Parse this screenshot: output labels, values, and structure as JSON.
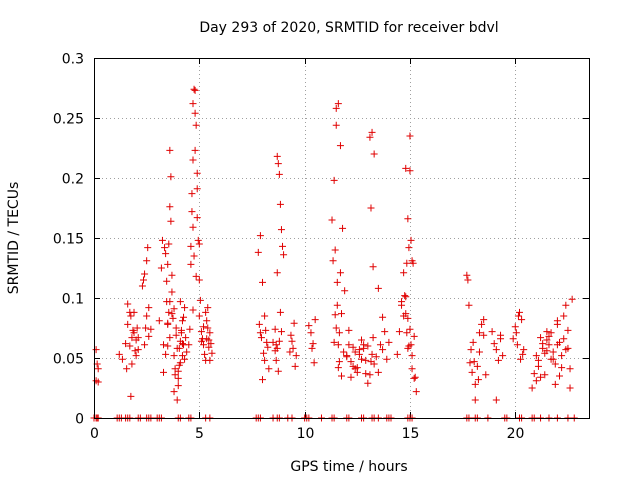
{
  "chart_data": {
    "type": "scatter",
    "title": "Day 293 of 2020, SRMTID for receiver bdvl",
    "xlabel": "GPS time / hours",
    "ylabel": "SRMTID / TECUs",
    "xlim": [
      0,
      23.5
    ],
    "ylim": [
      0,
      0.3
    ],
    "grid": true,
    "marker": "+",
    "color": "#e00000",
    "xticks": [
      0,
      5,
      10,
      15,
      20
    ],
    "xtick_labels": [
      "0",
      "5",
      "10",
      "15",
      "20"
    ],
    "yticks": [
      0,
      0.05,
      0.1,
      0.15,
      0.2,
      0.25,
      0.3
    ],
    "ytick_labels": [
      "0",
      "0.05",
      "0.1",
      "0.15",
      "0.2",
      "0.25",
      "0.3"
    ],
    "series": [
      {
        "name": "SRMTID",
        "x": [
          0.1,
          0.15,
          0.2,
          0.2,
          0.1,
          1.2,
          1.35,
          1.5,
          1.55,
          1.6,
          1.7,
          1.75,
          1.8,
          1.85,
          1.9,
          1.95,
          2.0,
          2.05,
          2.1,
          1.6,
          1.7,
          1.8,
          1.9,
          2.0,
          2.1,
          1.75,
          2.3,
          2.35,
          2.4,
          2.45,
          2.5,
          2.55,
          2.6,
          2.7,
          2.4,
          2.5,
          2.6,
          3.1,
          3.2,
          3.25,
          3.3,
          3.35,
          3.4,
          3.45,
          3.5,
          3.5,
          3.55,
          3.6,
          3.6,
          3.65,
          3.7,
          3.4,
          3.5,
          3.6,
          3.7,
          3.3,
          3.45,
          3.55,
          3.6,
          3.65,
          3.5,
          3.75,
          3.8,
          3.85,
          3.9,
          3.95,
          4.0,
          4.05,
          4.1,
          4.15,
          4.2,
          4.25,
          4.3,
          4.35,
          4.4,
          3.8,
          3.9,
          4.0,
          4.1,
          4.2,
          4.3,
          3.85,
          3.95,
          4.05,
          4.15,
          4.25,
          3.7,
          3.8,
          4.0,
          4.1,
          4.2,
          4.5,
          4.55,
          4.6,
          4.65,
          4.7,
          4.75,
          4.8,
          4.85,
          4.9,
          4.95,
          5.0,
          5.05,
          5.1,
          5.15,
          5.2,
          4.6,
          4.7,
          4.8,
          4.9,
          5.0,
          5.1,
          5.2,
          4.65,
          4.7,
          4.8,
          4.9,
          5.0,
          4.7,
          4.75,
          4.85,
          5.25,
          5.3,
          5.35,
          5.4,
          5.45,
          5.5,
          5.55,
          5.6,
          5.3,
          5.4,
          5.5,
          5.35,
          5.45,
          7.8,
          7.9,
          8.0,
          8.1,
          8.2,
          8.3,
          7.85,
          7.95,
          8.05,
          8.15,
          8.25,
          8.0,
          8.1,
          7.9,
          8.5,
          8.6,
          8.65,
          8.7,
          8.75,
          8.8,
          8.85,
          8.9,
          8.95,
          9.0,
          8.6,
          8.7,
          8.8,
          8.9,
          8.65,
          8.75,
          8.85,
          8.7,
          9.3,
          9.4,
          9.5,
          9.6,
          9.35,
          9.45,
          9.55,
          10.3,
          10.4,
          10.5,
          10.35,
          10.45,
          10.2,
          11.3,
          11.4,
          11.5,
          11.6,
          11.7,
          11.8,
          11.9,
          12.0,
          11.35,
          11.45,
          11.55,
          11.65,
          11.75,
          11.85,
          11.4,
          11.5,
          11.6,
          11.7,
          11.5,
          11.55,
          11.6,
          11.45,
          11.65,
          11.75,
          12.0,
          12.1,
          12.2,
          12.3,
          12.4,
          12.5,
          12.6,
          12.7,
          12.8,
          12.9,
          13.0,
          12.1,
          12.3,
          12.5,
          12.7,
          12.9,
          12.2,
          12.4,
          12.6,
          12.8,
          13.0,
          13.1,
          13.15,
          13.2,
          13.25,
          13.3,
          13.4,
          13.5,
          13.6,
          13.7,
          13.8,
          13.9,
          14.0,
          13.1,
          13.2,
          13.3,
          13.15,
          13.25,
          13.5,
          13.7,
          14.4,
          14.5,
          14.6,
          14.7,
          14.8,
          14.85,
          14.9,
          14.95,
          15.0,
          15.05,
          15.1,
          15.15,
          15.2,
          15.25,
          15.3,
          14.6,
          14.7,
          14.8,
          14.9,
          15.0,
          15.1,
          14.75,
          14.85,
          14.95,
          15.05,
          14.9,
          15.0,
          15.1,
          15.2,
          14.8,
          17.7,
          17.75,
          17.8,
          17.85,
          17.9,
          17.95,
          18.0,
          18.1,
          18.2,
          18.3,
          18.4,
          18.5,
          18.6,
          18.1,
          18.3,
          18.5,
          18.05,
          18.25,
          18.9,
          19.0,
          19.1,
          19.2,
          19.3,
          19.4,
          19.1,
          19.3,
          19.9,
          20.0,
          20.1,
          20.2,
          20.3,
          20.4,
          20.05,
          20.25,
          20.15,
          20.35,
          20.8,
          20.9,
          21.0,
          21.1,
          21.2,
          21.3,
          21.4,
          21.5,
          21.6,
          21.7,
          21.8,
          21.9,
          22.0,
          22.1,
          22.2,
          22.3,
          22.4,
          22.5,
          22.6,
          22.7,
          21.1,
          21.3,
          21.5,
          21.7,
          21.9,
          22.1,
          22.3,
          22.5,
          21.2,
          21.4,
          21.6,
          21.8,
          22.0,
          22.2,
          22.4,
          21.0,
          21.5,
          22.0,
          22.6,
          0.0,
          0.1,
          0.15,
          0.2,
          1.1,
          1.2,
          1.3,
          1.5,
          1.6,
          1.7,
          2.1,
          2.2,
          2.5,
          2.6,
          2.7,
          3.0,
          3.1,
          3.2,
          4.0,
          4.1,
          4.5,
          4.6,
          5.3,
          5.5,
          7.7,
          7.8,
          7.9,
          8.5,
          8.7,
          8.8,
          9.2,
          9.4,
          10.0,
          10.1,
          10.2,
          10.8,
          11.3,
          11.4,
          12.0,
          12.1,
          12.7,
          12.8,
          13.2,
          13.3,
          13.5,
          13.9,
          14.0,
          14.1,
          14.9,
          15.0,
          15.1,
          17.7,
          17.8,
          18.1,
          18.2,
          18.7,
          19.5,
          19.6,
          20.2,
          20.3,
          20.8,
          20.9,
          21.2,
          21.6,
          22.0,
          22.5,
          22.8
        ],
        "y": [
          0.057,
          0.045,
          0.041,
          0.03,
          0.031,
          0.053,
          0.049,
          0.062,
          0.041,
          0.078,
          0.06,
          0.085,
          0.045,
          0.073,
          0.088,
          0.056,
          0.065,
          0.075,
          0.067,
          0.095,
          0.088,
          0.067,
          0.071,
          0.052,
          0.057,
          0.018,
          0.11,
          0.115,
          0.12,
          0.075,
          0.131,
          0.142,
          0.092,
          0.074,
          0.061,
          0.085,
          0.068,
          0.081,
          0.125,
          0.148,
          0.061,
          0.142,
          0.137,
          0.097,
          0.128,
          0.06,
          0.088,
          0.223,
          0.176,
          0.164,
          0.087,
          0.053,
          0.078,
          0.067,
          0.119,
          0.038,
          0.114,
          0.145,
          0.097,
          0.201,
          0.079,
          0.083,
          0.052,
          0.041,
          0.069,
          0.015,
          0.033,
          0.058,
          0.046,
          0.071,
          0.062,
          0.084,
          0.049,
          0.067,
          0.055,
          0.091,
          0.075,
          0.027,
          0.064,
          0.081,
          0.092,
          0.036,
          0.058,
          0.044,
          0.073,
          0.061,
          0.105,
          0.022,
          0.039,
          0.097,
          0.052,
          0.061,
          0.074,
          0.143,
          0.187,
          0.215,
          0.274,
          0.273,
          0.244,
          0.167,
          0.148,
          0.085,
          0.098,
          0.072,
          0.066,
          0.061,
          0.128,
          0.09,
          0.254,
          0.204,
          0.115,
          0.064,
          0.076,
          0.172,
          0.262,
          0.223,
          0.191,
          0.145,
          0.159,
          0.135,
          0.118,
          0.053,
          0.048,
          0.066,
          0.075,
          0.059,
          0.071,
          0.062,
          0.054,
          0.088,
          0.092,
          0.048,
          0.081,
          0.065,
          0.138,
          0.152,
          0.113,
          0.085,
          0.063,
          0.041,
          0.078,
          0.067,
          0.054,
          0.073,
          0.059,
          0.032,
          0.048,
          0.071,
          0.063,
          0.074,
          0.061,
          0.058,
          0.212,
          0.203,
          0.178,
          0.157,
          0.143,
          0.136,
          0.056,
          0.121,
          0.064,
          0.072,
          0.048,
          0.039,
          0.088,
          0.218,
          0.055,
          0.064,
          0.079,
          0.052,
          0.069,
          0.058,
          0.043,
          0.071,
          0.062,
          0.082,
          0.058,
          0.046,
          0.077,
          0.165,
          0.198,
          0.244,
          0.262,
          0.227,
          0.158,
          0.106,
          0.051,
          0.131,
          0.14,
          0.094,
          0.071,
          0.087,
          0.055,
          0.063,
          0.075,
          0.042,
          0.121,
          0.258,
          0.113,
          0.061,
          0.086,
          0.047,
          0.035,
          0.052,
          0.061,
          0.047,
          0.043,
          0.055,
          0.038,
          0.057,
          0.049,
          0.061,
          0.037,
          0.029,
          0.073,
          0.059,
          0.042,
          0.065,
          0.048,
          0.034,
          0.041,
          0.053,
          0.058,
          0.06,
          0.036,
          0.047,
          0.053,
          0.067,
          0.045,
          0.051,
          0.038,
          0.061,
          0.057,
          0.072,
          0.049,
          0.063,
          0.234,
          0.238,
          0.22,
          0.175,
          0.126,
          0.108,
          0.084,
          0.053,
          0.072,
          0.097,
          0.085,
          0.101,
          0.071,
          0.083,
          0.06,
          0.235,
          0.148,
          0.131,
          0.129,
          0.068,
          0.034,
          0.022,
          0.094,
          0.121,
          0.208,
          0.166,
          0.206,
          0.041,
          0.102,
          0.129,
          0.142,
          0.061,
          0.058,
          0.074,
          0.052,
          0.033,
          0.087,
          0.119,
          0.115,
          0.094,
          0.046,
          0.057,
          0.038,
          0.063,
          0.028,
          0.043,
          0.071,
          0.078,
          0.082,
          0.036,
          0.015,
          0.055,
          0.069,
          0.047,
          0.032,
          0.072,
          0.062,
          0.057,
          0.048,
          0.069,
          0.052,
          0.015,
          0.066,
          0.066,
          0.076,
          0.061,
          0.088,
          0.082,
          0.057,
          0.071,
          0.049,
          0.085,
          0.053,
          0.025,
          0.037,
          0.052,
          0.043,
          0.067,
          0.058,
          0.036,
          0.072,
          0.061,
          0.049,
          0.055,
          0.028,
          0.078,
          0.063,
          0.052,
          0.085,
          0.094,
          0.058,
          0.041,
          0.099,
          0.048,
          0.062,
          0.056,
          0.071,
          0.045,
          0.035,
          0.066,
          0.073,
          0.034,
          0.054,
          0.068,
          0.049,
          0.061,
          0.042,
          0.057,
          0.031,
          0.065,
          0.081,
          0.025,
          0,
          0,
          0,
          0,
          0,
          0,
          0,
          0,
          0,
          0,
          0,
          0,
          0,
          0,
          0,
          0,
          0,
          0,
          0,
          0,
          0,
          0,
          0,
          0,
          0,
          0,
          0,
          0,
          0,
          0,
          0,
          0,
          0,
          0,
          0,
          0,
          0,
          0,
          0,
          0,
          0,
          0,
          0,
          0,
          0,
          0,
          0,
          0,
          0,
          0,
          0,
          0,
          0,
          0,
          0,
          0,
          0,
          0,
          0,
          0,
          0,
          0,
          0,
          0,
          0,
          0,
          0
        ]
      }
    ]
  }
}
